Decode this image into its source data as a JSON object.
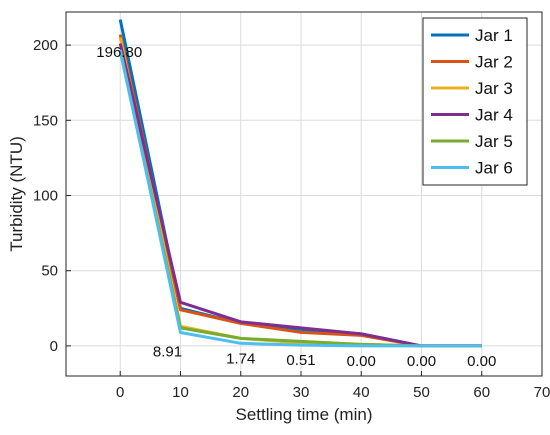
{
  "chart_data": {
    "type": "line",
    "title": "",
    "xlabel": "Settling time (min)",
    "ylabel": "Turbidity (NTU)",
    "xlim": [
      -9,
      70
    ],
    "ylim": [
      -20,
      222
    ],
    "xticks": [
      0,
      10,
      20,
      30,
      40,
      50,
      60,
      70
    ],
    "yticks": [
      0,
      50,
      100,
      150,
      200
    ],
    "grid": true,
    "legend_position": "top-right",
    "x": [
      0,
      10,
      20,
      30,
      40,
      50,
      60
    ],
    "series": [
      {
        "name": "Jar 1",
        "color": "#0072bd",
        "values": [
          217,
          25,
          15,
          11,
          8,
          0,
          0
        ]
      },
      {
        "name": "Jar 2",
        "color": "#d95319",
        "values": [
          207,
          24,
          15,
          9,
          7,
          0,
          0
        ]
      },
      {
        "name": "Jar 3",
        "color": "#edb120",
        "values": [
          205,
          13,
          5,
          2,
          1,
          0,
          0
        ]
      },
      {
        "name": "Jar 4",
        "color": "#7e2f8e",
        "values": [
          201,
          29,
          16,
          12,
          8,
          0,
          0
        ]
      },
      {
        "name": "Jar 5",
        "color": "#77ac30",
        "values": [
          196,
          12,
          5,
          3,
          1,
          0,
          0
        ]
      },
      {
        "name": "Jar 6",
        "color": "#4dbeee",
        "values": [
          196.8,
          8.91,
          1.74,
          0.51,
          0,
          0,
          0
        ]
      }
    ],
    "annotations": [
      {
        "text": "196.80",
        "x": 0,
        "y": 196.8
      },
      {
        "text": "8.91",
        "x": 10,
        "y": 8.91
      },
      {
        "text": "1.74",
        "x": 20,
        "y": 1.74
      },
      {
        "text": "0.51",
        "x": 30,
        "y": 0.51
      },
      {
        "text": "0.00",
        "x": 40,
        "y": 0
      },
      {
        "text": "0.00",
        "x": 50,
        "y": 0
      },
      {
        "text": "0.00",
        "x": 60,
        "y": 0
      }
    ]
  }
}
